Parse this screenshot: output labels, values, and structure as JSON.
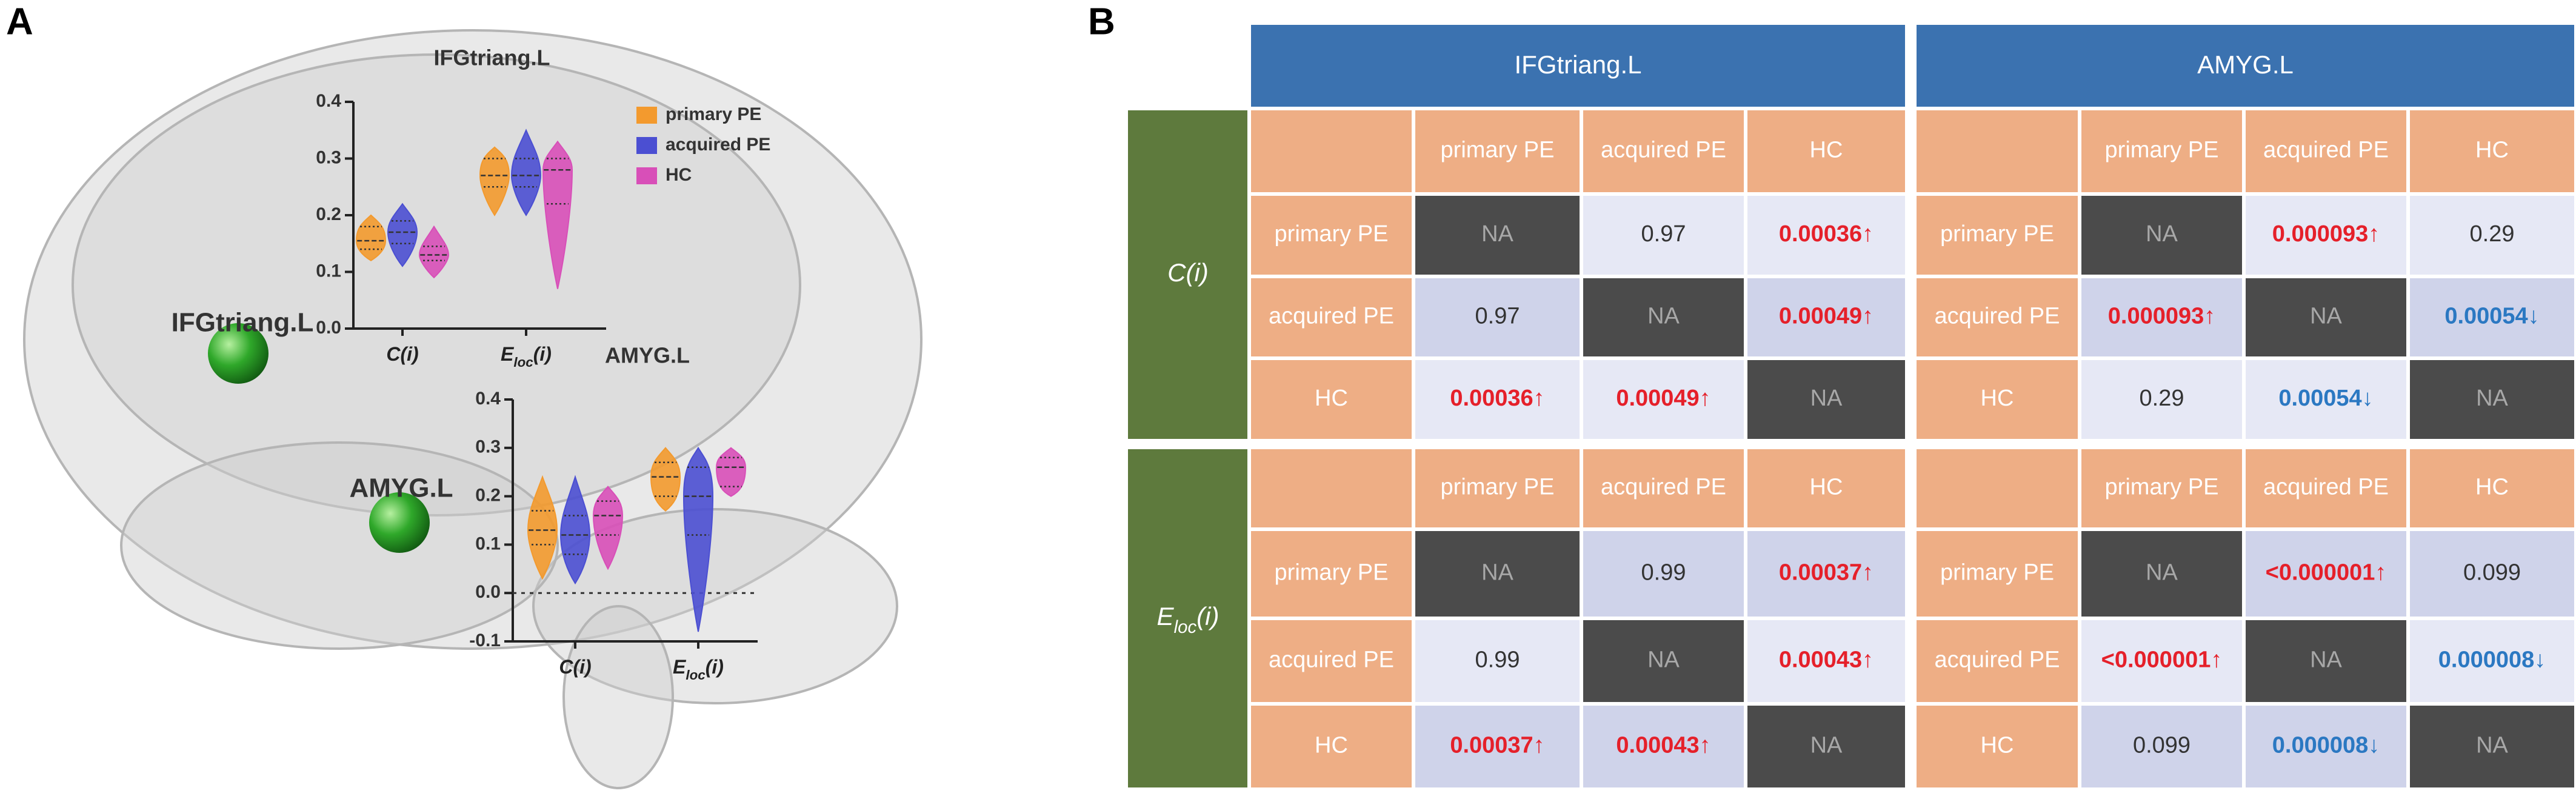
{
  "panels": [
    "A",
    "B"
  ],
  "brain": {
    "nodes": [
      "IFGtriang.L",
      "AMYG.L"
    ]
  },
  "chart_data": [
    {
      "type": "violin",
      "title": "IFGtriang.L",
      "categories": [
        [
          "C(i)"
        ],
        [
          "E",
          "loc",
          "(i)"
        ]
      ],
      "ylim": [
        0,
        0.4
      ],
      "yticks": [
        {
          "value": 0,
          "label": "0.0"
        },
        0.1,
        0.2,
        0.3,
        0.4
      ],
      "legend": true,
      "zero_line": false,
      "series": [
        {
          "name": "primary PE",
          "color": "#f39a2e",
          "values": [
            [
              0.12,
              0.14,
              0.155,
              0.18,
              0.2
            ],
            [
              0.2,
              0.25,
              0.27,
              0.3,
              0.32
            ]
          ]
        },
        {
          "name": "acquired PE",
          "color": "#4b4fd2",
          "values": [
            [
              0.11,
              0.15,
              0.17,
              0.19,
              0.22
            ],
            [
              0.2,
              0.25,
              0.27,
              0.3,
              0.35
            ]
          ]
        },
        {
          "name": "HC",
          "color": "#d84fb8",
          "values": [
            [
              0.09,
              0.12,
              0.13,
              0.145,
              0.18
            ],
            [
              0.07,
              0.22,
              0.28,
              0.3,
              0.33
            ]
          ]
        }
      ]
    },
    {
      "type": "violin",
      "title": "AMYG.L",
      "categories": [
        [
          "C(i)"
        ],
        [
          "E",
          "loc",
          "(i)"
        ]
      ],
      "ylim": [
        -0.1,
        0.4
      ],
      "yticks": [
        -0.1,
        {
          "value": 0,
          "label": "0.0"
        },
        0.1,
        0.2,
        0.3,
        0.4
      ],
      "legend": false,
      "zero_line": true,
      "series": [
        {
          "color": "#f39a2e",
          "values": [
            [
              0.03,
              0.1,
              0.13,
              0.17,
              0.24
            ],
            [
              0.17,
              0.2,
              0.24,
              0.27,
              0.3
            ]
          ]
        },
        {
          "color": "#4b4fd2",
          "values": [
            [
              0.02,
              0.08,
              0.12,
              0.16,
              0.24
            ],
            [
              -0.08,
              0.12,
              0.2,
              0.26,
              0.3
            ]
          ]
        },
        {
          "color": "#d84fb8",
          "values": [
            [
              0.05,
              0.12,
              0.16,
              0.19,
              0.22
            ],
            [
              0.2,
              0.22,
              0.26,
              0.28,
              0.3
            ]
          ]
        }
      ]
    }
  ],
  "table": {
    "columns": [
      "IFGtriang.L",
      "AMYG.L"
    ],
    "levels": [
      "primary PE",
      "acquired PE",
      "HC"
    ],
    "groups": [
      {
        "label": [
          "C(i)"
        ],
        "cells": [
          [
            [
              "NA",
              "0.97",
              "0.00036↑"
            ],
            [
              "0.97",
              "NA",
              "0.00049↑"
            ],
            [
              "0.00036↑",
              "0.00049↑",
              "NA"
            ]
          ],
          [
            [
              "NA",
              "0.000093↑",
              "0.29"
            ],
            [
              "0.000093↑",
              "NA",
              "0.00054↓"
            ],
            [
              "0.29",
              "0.00054↓",
              "NA"
            ]
          ]
        ]
      },
      {
        "label": [
          "E",
          "loc",
          "(i)"
        ],
        "cells": [
          [
            [
              "NA",
              "0.99",
              "0.00037↑"
            ],
            [
              "0.99",
              "NA",
              "0.00043↑"
            ],
            [
              "0.00037↑",
              "0.00043↑",
              "NA"
            ]
          ],
          [
            [
              "NA",
              "<0.000001↑",
              "0.099"
            ],
            [
              "<0.000001↑",
              "NA",
              "0.000008↓"
            ],
            [
              "0.099",
              "0.000008↓",
              "NA"
            ]
          ]
        ]
      }
    ]
  }
}
